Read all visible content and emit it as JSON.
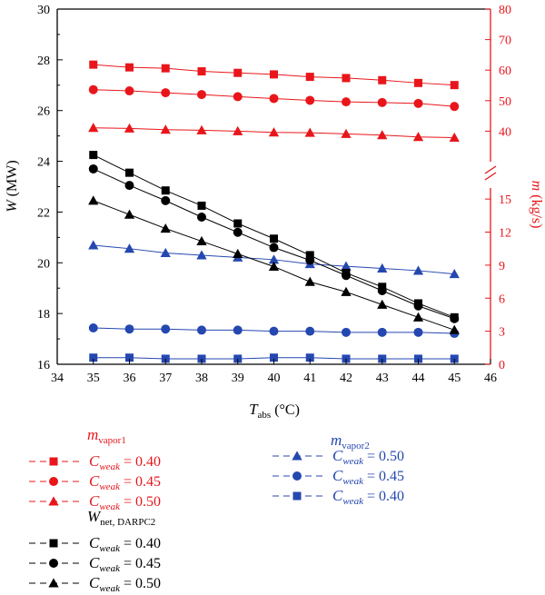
{
  "chart_data": {
    "type": "line",
    "x": [
      35,
      36,
      37,
      38,
      39,
      40,
      41,
      42,
      43,
      44,
      45
    ],
    "xlim": [
      34,
      46
    ],
    "x_ticks": [
      "34",
      "35",
      "36",
      "37",
      "38",
      "39",
      "40",
      "41",
      "42",
      "43",
      "44",
      "45",
      "46"
    ],
    "xlabel": {
      "main": "T",
      "sub": "abs",
      "unit": " (°C)"
    },
    "left_axis": {
      "label": {
        "main": "W",
        "unit": " (MW)"
      },
      "ylim": [
        16,
        30
      ],
      "ticks": [
        "16",
        "18",
        "20",
        "22",
        "24",
        "26",
        "28",
        "30"
      ],
      "color": "#000000"
    },
    "right_axis": {
      "label": {
        "main": "m",
        "unit": " (kg/s)"
      },
      "color": "#e8161b",
      "broken": true,
      "upper_ylim": [
        30,
        80
      ],
      "upper_ticks": [
        "40",
        "50",
        "60",
        "70",
        "80"
      ],
      "lower_ylim": [
        0,
        16
      ],
      "lower_ticks": [
        "0",
        "3",
        "6",
        "9",
        "12",
        "15"
      ]
    },
    "series": [
      {
        "group": "mvapor1",
        "name": "C_weak = 0.40",
        "axis": "right",
        "marker": "square",
        "color": "#e8161b",
        "values": [
          61.8,
          60.9,
          60.6,
          59.6,
          59.1,
          58.6,
          57.8,
          57.4,
          56.7,
          55.8,
          55.1
        ]
      },
      {
        "group": "mvapor1",
        "name": "C_weak = 0.45",
        "axis": "right",
        "marker": "circle",
        "color": "#e8161b",
        "values": [
          53.6,
          53.2,
          52.6,
          52.0,
          51.3,
          50.7,
          50.1,
          49.6,
          49.4,
          49.1,
          48.1
        ]
      },
      {
        "group": "mvapor1",
        "name": "C_weak = 0.50",
        "axis": "right",
        "marker": "triangle",
        "color": "#e8161b",
        "values": [
          41.1,
          40.9,
          40.5,
          40.3,
          40.0,
          39.6,
          39.5,
          39.1,
          38.7,
          38.1,
          37.9
        ]
      },
      {
        "group": "mvapor2",
        "name": "C_weak = 0.50",
        "axis": "right",
        "marker": "triangle",
        "color": "#2547b0",
        "values": [
          10.8,
          10.5,
          10.1,
          9.9,
          9.7,
          9.5,
          9.1,
          8.9,
          8.7,
          8.5,
          8.2
        ]
      },
      {
        "group": "mvapor2",
        "name": "C_weak = 0.45",
        "axis": "right",
        "marker": "circle",
        "color": "#2547b0",
        "values": [
          3.3,
          3.2,
          3.2,
          3.1,
          3.1,
          3.0,
          3.0,
          2.9,
          2.9,
          2.9,
          2.8
        ]
      },
      {
        "group": "mvapor2",
        "name": "C_weak = 0.40",
        "axis": "right",
        "marker": "square",
        "color": "#2547b0",
        "values": [
          0.6,
          0.6,
          0.5,
          0.5,
          0.5,
          0.6,
          0.6,
          0.5,
          0.5,
          0.5,
          0.5
        ]
      },
      {
        "group": "Wnet",
        "name": "C_weak = 0.40",
        "axis": "left",
        "marker": "square",
        "color": "#000000",
        "values": [
          24.25,
          23.55,
          22.85,
          22.25,
          21.55,
          20.95,
          20.3,
          19.6,
          19.05,
          18.4,
          17.85
        ]
      },
      {
        "group": "Wnet",
        "name": "C_weak = 0.45",
        "axis": "left",
        "marker": "circle",
        "color": "#000000",
        "values": [
          23.7,
          23.05,
          22.45,
          21.8,
          21.2,
          20.6,
          20.1,
          19.5,
          18.9,
          18.3,
          17.8
        ]
      },
      {
        "group": "Wnet",
        "name": "C_weak = 0.50",
        "axis": "left",
        "marker": "triangle",
        "color": "#000000",
        "values": [
          22.45,
          21.9,
          21.35,
          20.85,
          20.35,
          19.85,
          19.25,
          18.85,
          18.35,
          17.85,
          17.35
        ]
      }
    ],
    "legend": {
      "groups": [
        {
          "id": "mvapor1",
          "title_main": "m",
          "title_sub": "vapor1",
          "color": "#e8161b",
          "entries": [
            {
              "marker": "square",
              "label": "= 0.40"
            },
            {
              "marker": "circle",
              "label": "= 0.45"
            },
            {
              "marker": "triangle",
              "label": "= 0.50"
            }
          ]
        },
        {
          "id": "mvapor2",
          "title_main": "m",
          "title_sub": "vapor2",
          "color": "#2547b0",
          "entries": [
            {
              "marker": "triangle",
              "label": "= 0.50"
            },
            {
              "marker": "circle",
              "label": "= 0.45"
            },
            {
              "marker": "square",
              "label": "= 0.40"
            }
          ]
        },
        {
          "id": "Wnet",
          "title_main": "W",
          "title_sub": "net, DARPC2",
          "color": "#000000",
          "entries": [
            {
              "marker": "square",
              "label": "= 0.40"
            },
            {
              "marker": "circle",
              "label": "= 0.45"
            },
            {
              "marker": "triangle",
              "label": "= 0.50"
            }
          ]
        }
      ],
      "entry_main": "C",
      "entry_sub": "weak"
    }
  }
}
